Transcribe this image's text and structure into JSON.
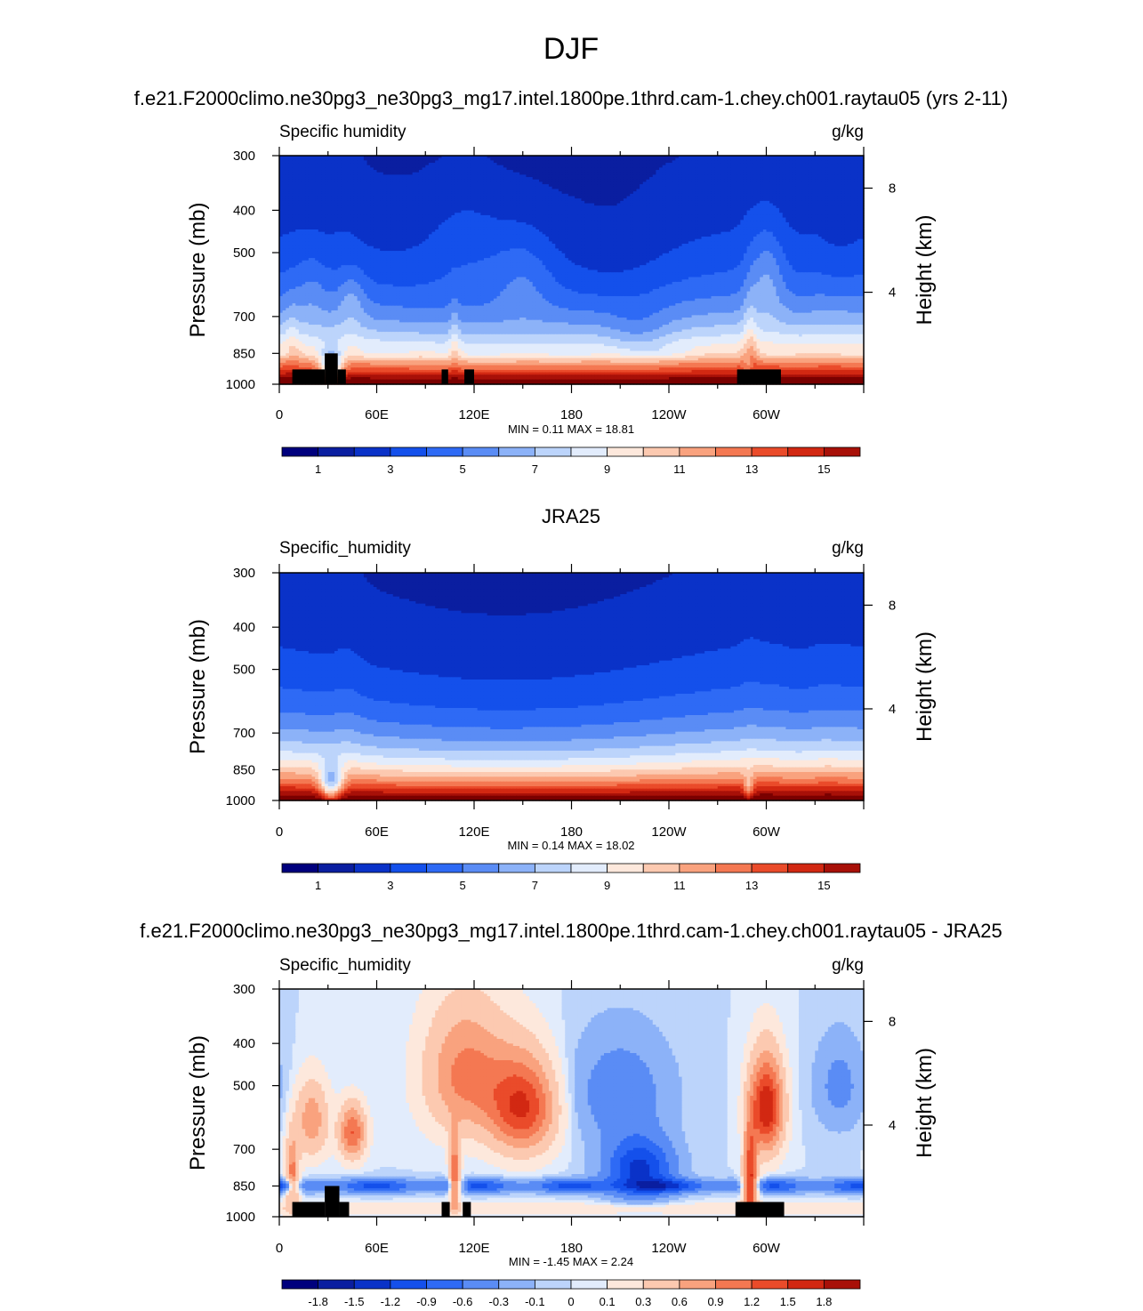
{
  "figure": {
    "title": "DJF",
    "season": "DJF"
  },
  "chart_data": [
    {
      "type": "heatmap",
      "panel_title": "f.e21.F2000climo.ne30pg3_ne30pg3_mg17.intel.1800pe.1thrd.cam-1.chey.ch001.raytau05 (yrs 2-11)",
      "left_string": "Specific humidity",
      "right_string": "g/kg",
      "ylabel": "Pressure (mb)",
      "ylabel_right": "Height (km)",
      "x_tick_labels": [
        "0",
        "60E",
        "120E",
        "180",
        "120W",
        "60W"
      ],
      "x_ticks_deg": [
        0,
        60,
        120,
        180,
        240,
        300
      ],
      "y_tick_labels": [
        "300",
        "400",
        "500",
        "700",
        "850",
        "1000"
      ],
      "y_ticks_mb": [
        300,
        400,
        500,
        700,
        850,
        1000
      ],
      "height_tick_labels": [
        "8",
        "4"
      ],
      "ylim": [
        300,
        1000
      ],
      "xlim": [
        0,
        360
      ],
      "min": 0.11,
      "max": 18.81,
      "min_text": "MIN =   0.11  MAX =  18.81",
      "colorbar_labels": [
        "1",
        "3",
        "5",
        "7",
        "9",
        "11",
        "13",
        "15"
      ],
      "colorbar_label_slots": [
        1,
        3,
        5,
        7,
        9,
        11,
        13,
        15
      ],
      "levels": [
        0,
        1,
        2,
        3,
        4,
        5,
        6,
        7,
        8,
        9,
        10,
        11,
        12,
        13,
        14,
        15
      ],
      "field": "model",
      "topography_bars": [
        [
          8,
          28,
          1000,
          925
        ],
        [
          28,
          36,
          1000,
          850
        ],
        [
          36,
          41,
          1000,
          925
        ],
        [
          100,
          104,
          1000,
          925
        ],
        [
          114,
          120,
          1000,
          925
        ],
        [
          282,
          309,
          1000,
          925
        ]
      ]
    },
    {
      "type": "heatmap",
      "panel_title": "JRA25",
      "left_string": "Specific_humidity",
      "right_string": "g/kg",
      "ylabel": "Pressure (mb)",
      "ylabel_right": "Height (km)",
      "x_tick_labels": [
        "0",
        "60E",
        "120E",
        "180",
        "120W",
        "60W"
      ],
      "x_ticks_deg": [
        0,
        60,
        120,
        180,
        240,
        300
      ],
      "y_tick_labels": [
        "300",
        "400",
        "500",
        "700",
        "850",
        "1000"
      ],
      "y_ticks_mb": [
        300,
        400,
        500,
        700,
        850,
        1000
      ],
      "height_tick_labels": [
        "8",
        "4"
      ],
      "ylim": [
        300,
        1000
      ],
      "xlim": [
        0,
        360
      ],
      "min": 0.14,
      "max": 18.02,
      "min_text": "MIN =   0.14  MAX =  18.02",
      "colorbar_labels": [
        "1",
        "3",
        "5",
        "7",
        "9",
        "11",
        "13",
        "15"
      ],
      "colorbar_label_slots": [
        1,
        3,
        5,
        7,
        9,
        11,
        13,
        15
      ],
      "levels": [
        0,
        1,
        2,
        3,
        4,
        5,
        6,
        7,
        8,
        9,
        10,
        11,
        12,
        13,
        14,
        15
      ],
      "field": "obs",
      "topography_bars": []
    },
    {
      "type": "heatmap",
      "panel_title": "f.e21.F2000climo.ne30pg3_ne30pg3_mg17.intel.1800pe.1thrd.cam-1.chey.ch001.raytau05 - JRA25",
      "left_string": "Specific_humidity",
      "right_string": "g/kg",
      "ylabel": "Pressure (mb)",
      "ylabel_right": "Height (km)",
      "x_tick_labels": [
        "0",
        "60E",
        "120E",
        "180",
        "120W",
        "60W"
      ],
      "x_ticks_deg": [
        0,
        60,
        120,
        180,
        240,
        300
      ],
      "y_tick_labels": [
        "300",
        "400",
        "500",
        "700",
        "850",
        "1000"
      ],
      "y_ticks_mb": [
        300,
        400,
        500,
        700,
        850,
        1000
      ],
      "height_tick_labels": [
        "8",
        "4"
      ],
      "ylim": [
        300,
        1000
      ],
      "xlim": [
        0,
        360
      ],
      "min": -1.45,
      "max": 2.24,
      "min_text": "MIN =  -1.45  MAX =   2.24",
      "colorbar_labels": [
        "-1.8",
        "-1.5",
        "-1.2",
        "-0.9",
        "-0.6",
        "-0.3",
        "-0.1",
        "0",
        "0.1",
        "0.3",
        "0.6",
        "0.9",
        "1.2",
        "1.5",
        "1.8"
      ],
      "colorbar_label_slots": [
        1,
        2,
        3,
        4,
        5,
        6,
        7,
        8,
        9,
        10,
        11,
        12,
        13,
        14,
        15
      ],
      "levels": [
        -1.8,
        -1.5,
        -1.2,
        -0.9,
        -0.6,
        -0.3,
        -0.1,
        0,
        0.1,
        0.3,
        0.6,
        0.9,
        1.2,
        1.5,
        1.8
      ],
      "field": "diff",
      "topography_bars": [
        [
          8,
          28,
          1000,
          925
        ],
        [
          28,
          37,
          1000,
          850
        ],
        [
          37,
          43,
          1000,
          925
        ],
        [
          100,
          105,
          1000,
          925
        ],
        [
          113,
          118,
          1000,
          925
        ],
        [
          281,
          311,
          1000,
          925
        ]
      ]
    }
  ],
  "colormap": [
    "#00007d",
    "#0a1ea0",
    "#0a32c8",
    "#1450eb",
    "#2e6af5",
    "#5a8cf5",
    "#8cb2f8",
    "#bcd4fb",
    "#e2ecfc",
    "#fde8dc",
    "#fcc9b0",
    "#f9a27e",
    "#f47852",
    "#ea4b2a",
    "#d22812",
    "#a81008",
    "#7a0000"
  ]
}
